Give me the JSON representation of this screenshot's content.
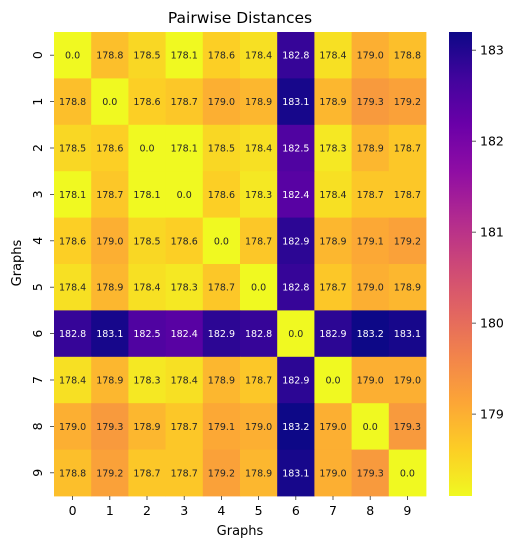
{
  "chart_data": {
    "type": "heatmap",
    "title": "Pairwise Distances",
    "xlabel": "Graphs",
    "ylabel": "Graphs",
    "x_categories": [
      "0",
      "1",
      "2",
      "3",
      "4",
      "5",
      "6",
      "7",
      "8",
      "9"
    ],
    "y_categories": [
      "0",
      "1",
      "2",
      "3",
      "4",
      "5",
      "6",
      "7",
      "8",
      "9"
    ],
    "values": [
      [
        0.0,
        178.8,
        178.5,
        178.1,
        178.6,
        178.4,
        182.8,
        178.4,
        179.0,
        178.8
      ],
      [
        178.8,
        0.0,
        178.6,
        178.7,
        179.0,
        178.9,
        183.1,
        178.9,
        179.3,
        179.2
      ],
      [
        178.5,
        178.6,
        0.0,
        178.1,
        178.5,
        178.4,
        182.5,
        178.3,
        178.9,
        178.7
      ],
      [
        178.1,
        178.7,
        178.1,
        0.0,
        178.6,
        178.3,
        182.4,
        178.4,
        178.7,
        178.7
      ],
      [
        178.6,
        179.0,
        178.5,
        178.6,
        0.0,
        178.7,
        182.9,
        178.9,
        179.1,
        179.2
      ],
      [
        178.4,
        178.9,
        178.4,
        178.3,
        178.7,
        0.0,
        182.8,
        178.7,
        179.0,
        178.9
      ],
      [
        182.8,
        183.1,
        182.5,
        182.4,
        182.9,
        182.8,
        0.0,
        182.9,
        183.2,
        183.1
      ],
      [
        178.4,
        178.9,
        178.3,
        178.4,
        178.9,
        178.7,
        182.9,
        0.0,
        179.0,
        179.0
      ],
      [
        179.0,
        179.3,
        178.9,
        178.7,
        179.1,
        179.0,
        183.2,
        179.0,
        0.0,
        179.3
      ],
      [
        178.8,
        179.2,
        178.7,
        178.7,
        179.2,
        178.9,
        183.1,
        179.0,
        179.3,
        0.0
      ]
    ],
    "colormap": "plasma",
    "colorbar": {
      "min": 178.1,
      "max": 183.2,
      "ticks": [
        179,
        180,
        181,
        182,
        183
      ]
    },
    "annotations": true,
    "value_format": "0.1f"
  }
}
